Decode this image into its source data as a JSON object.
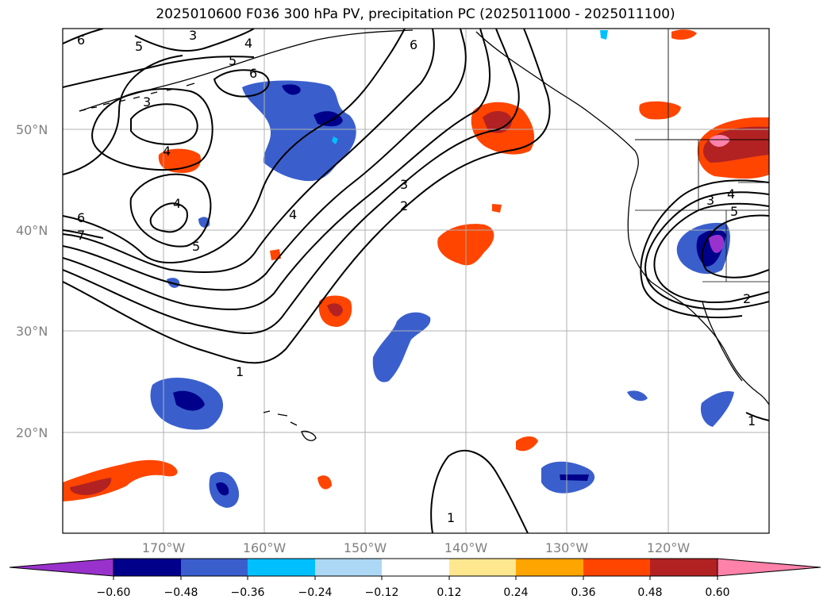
{
  "title": "2025010600 F036 300 hPa PV, precipitation PC (2025011000 - 2025011100)",
  "colors": {
    "pc_neg_extreme": "#9932cc",
    "pc_m060": "#00008b",
    "pc_m048": "#3a5fcd",
    "pc_m036": "#00bfff",
    "pc_m024": "#add8f5",
    "pc_zero": "#ffffff",
    "pc_p012": "#ffe78f",
    "pc_p024": "#ffa500",
    "pc_p036": "#ff4500",
    "pc_p048": "#b22222",
    "pc_pos_extreme": "#ff82ab",
    "contour": "#000000",
    "coast": "#000000",
    "grid": "#b0b0b0"
  },
  "map": {
    "projection": "PlateCarree",
    "lon_range": [
      -180,
      -110
    ],
    "lat_range": [
      10,
      60
    ],
    "lat_labels": [
      "50°N",
      "40°N",
      "30°N",
      "20°N"
    ],
    "lon_labels": [
      "170°W",
      "160°W",
      "150°W",
      "140°W",
      "130°W",
      "120°W"
    ],
    "gridlines": true
  },
  "pv_contour_labels": [
    "6",
    "3",
    "5",
    "4",
    "5",
    "6",
    "6",
    "3",
    "4",
    "4",
    "5",
    "6",
    "7",
    "3",
    "2",
    "4",
    "1",
    "1",
    "3",
    "4",
    "5",
    "2",
    "1"
  ],
  "colorbar": {
    "ticks": [
      "−0.60",
      "−0.48",
      "−0.36",
      "−0.24",
      "−0.12",
      "0.12",
      "0.24",
      "0.36",
      "0.48",
      "0.60"
    ],
    "extend": "both"
  }
}
